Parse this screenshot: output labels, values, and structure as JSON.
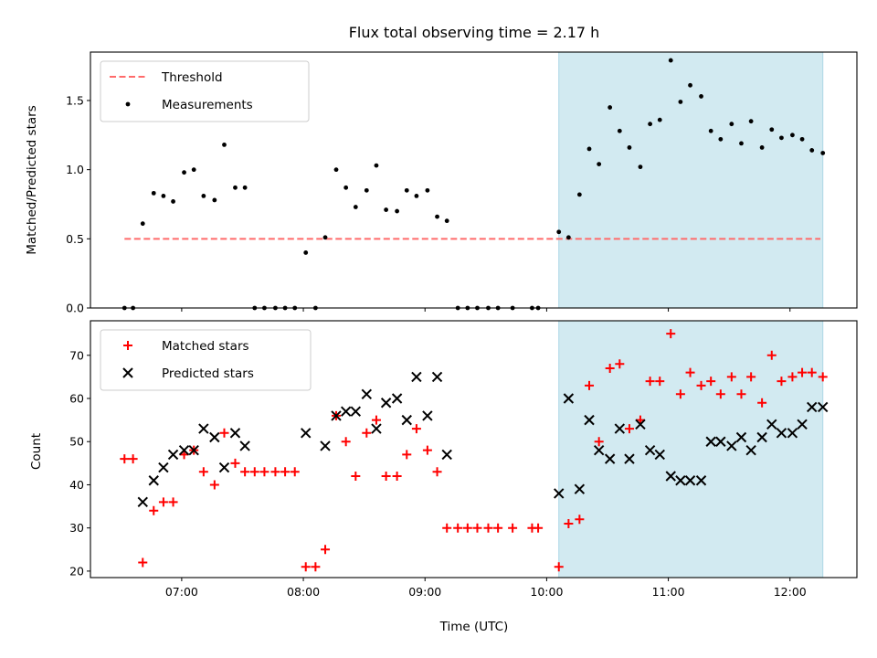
{
  "chart_data": {
    "title": "Flux total observing time = 2.17 h",
    "xlabel": "Time (UTC)",
    "x_ticks": [
      "07:00",
      "08:00",
      "09:00",
      "10:00",
      "11:00",
      "12:00"
    ],
    "x_tick_hours": [
      7,
      8,
      9,
      10,
      11,
      12
    ],
    "xlim": [
      6.25,
      12.55
    ],
    "shaded_region": {
      "x0": 10.1,
      "x1": 12.27,
      "color": "#add8e6"
    },
    "panels": [
      {
        "type": "scatter",
        "ylabel": "Matched/Predicted stars",
        "ylim": [
          0,
          1.85
        ],
        "y_ticks": [
          0.0,
          0.5,
          1.0,
          1.5
        ],
        "y_tick_labels": [
          "0.0",
          "0.5",
          "1.0",
          "1.5"
        ],
        "legend": {
          "position": "top-left",
          "entries": [
            "Threshold",
            "Measurements"
          ]
        },
        "threshold": {
          "name": "Threshold",
          "y": 0.5,
          "x": [
            6.53,
            12.25
          ],
          "color": "#ff6b6b"
        },
        "series": [
          {
            "name": "Measurements",
            "color": "#000000",
            "x": [
              6.53,
              6.6,
              6.68,
              6.77,
              6.85,
              6.93,
              7.02,
              7.1,
              7.18,
              7.27,
              7.35,
              7.44,
              7.52,
              7.6,
              7.68,
              7.77,
              7.85,
              7.93,
              8.02,
              8.1,
              8.18,
              8.27,
              8.35,
              8.43,
              8.52,
              8.6,
              8.68,
              8.77,
              8.85,
              8.93,
              9.02,
              9.1,
              9.18,
              9.27,
              9.35,
              9.43,
              9.52,
              9.6,
              9.72,
              9.88,
              9.93,
              10.1,
              10.18,
              10.27,
              10.35,
              10.43,
              10.52,
              10.6,
              10.68,
              10.77,
              10.85,
              10.93,
              11.02,
              11.1,
              11.18,
              11.27,
              11.35,
              11.43,
              11.52,
              11.6,
              11.68,
              11.77,
              11.85,
              11.93,
              12.02,
              12.1,
              12.18,
              12.27
            ],
            "y": [
              0.0,
              0.0,
              0.61,
              0.83,
              0.81,
              0.77,
              0.98,
              1.0,
              0.81,
              0.78,
              1.18,
              0.87,
              0.87,
              0.0,
              0.0,
              0.0,
              0.0,
              0.0,
              0.4,
              0.0,
              0.51,
              1.0,
              0.87,
              0.73,
              0.85,
              1.03,
              0.71,
              0.7,
              0.85,
              0.81,
              0.85,
              0.66,
              0.63,
              0.0,
              0.0,
              0.0,
              0.0,
              0.0,
              0.0,
              0.0,
              0.0,
              0.55,
              0.51,
              0.82,
              1.15,
              1.04,
              1.45,
              1.28,
              1.16,
              1.02,
              1.33,
              1.36,
              1.79,
              1.49,
              1.61,
              1.53,
              1.28,
              1.22,
              1.33,
              1.19,
              1.35,
              1.16,
              1.29,
              1.23,
              1.25,
              1.22,
              1.14,
              1.12
            ]
          }
        ]
      },
      {
        "type": "scatter",
        "ylabel": "Count",
        "ylim": [
          18.5,
          78
        ],
        "y_ticks": [
          20,
          30,
          40,
          50,
          60,
          70
        ],
        "y_tick_labels": [
          "20",
          "30",
          "40",
          "50",
          "60",
          "70"
        ],
        "legend": {
          "position": "top-left",
          "entries": [
            "Matched stars",
            "Predicted stars"
          ]
        },
        "series": [
          {
            "name": "Matched stars",
            "marker": "+",
            "color": "#ff0000",
            "x": [
              6.53,
              6.6,
              6.68,
              6.77,
              6.85,
              6.93,
              7.02,
              7.1,
              7.18,
              7.27,
              7.35,
              7.44,
              7.52,
              7.6,
              7.68,
              7.77,
              7.85,
              7.93,
              8.02,
              8.1,
              8.18,
              8.27,
              8.35,
              8.43,
              8.52,
              8.6,
              8.68,
              8.77,
              8.85,
              8.93,
              9.02,
              9.1,
              9.18,
              9.27,
              9.35,
              9.43,
              9.52,
              9.6,
              9.72,
              9.88,
              9.93,
              10.1,
              10.18,
              10.27,
              10.35,
              10.43,
              10.52,
              10.6,
              10.68,
              10.77,
              10.85,
              10.93,
              11.02,
              11.1,
              11.18,
              11.27,
              11.35,
              11.43,
              11.52,
              11.6,
              11.68,
              11.77,
              11.85,
              11.93,
              12.02,
              12.1,
              12.18,
              12.27
            ],
            "y": [
              46,
              46,
              22,
              34,
              36,
              36,
              47,
              48,
              43,
              40,
              52,
              45,
              43,
              43,
              43,
              43,
              43,
              43,
              21,
              21,
              25,
              56,
              50,
              42,
              52,
              55,
              42,
              42,
              47,
              53,
              48,
              43,
              30,
              30,
              30,
              30,
              30,
              30,
              30,
              30,
              30,
              21,
              31,
              32,
              63,
              50,
              67,
              68,
              53,
              55,
              64,
              64,
              75,
              61,
              66,
              63,
              64,
              61,
              65,
              61,
              65,
              59,
              70,
              64,
              65,
              66,
              66,
              65
            ]
          },
          {
            "name": "Predicted stars",
            "marker": "x",
            "color": "#000000",
            "x": [
              6.68,
              6.77,
              6.85,
              6.93,
              7.02,
              7.1,
              7.18,
              7.27,
              7.35,
              7.44,
              7.52,
              8.02,
              8.18,
              8.27,
              8.35,
              8.43,
              8.52,
              8.6,
              8.68,
              8.77,
              8.85,
              8.93,
              9.02,
              9.1,
              9.18,
              10.1,
              10.18,
              10.27,
              10.35,
              10.43,
              10.52,
              10.6,
              10.68,
              10.77,
              10.85,
              10.93,
              11.02,
              11.1,
              11.18,
              11.27,
              11.35,
              11.43,
              11.52,
              11.6,
              11.68,
              11.77,
              11.85,
              11.93,
              12.02,
              12.1,
              12.18,
              12.27
            ],
            "y": [
              36,
              41,
              44,
              47,
              48,
              48,
              53,
              51,
              44,
              52,
              49,
              52,
              49,
              56,
              57,
              57,
              61,
              53,
              59,
              60,
              55,
              65,
              56,
              65,
              47,
              38,
              60,
              39,
              55,
              48,
              46,
              53,
              46,
              54,
              48,
              47,
              42,
              41,
              41,
              41,
              50,
              50,
              49,
              51,
              48,
              51,
              54,
              52,
              52,
              54,
              58,
              58
            ]
          }
        ]
      }
    ]
  }
}
